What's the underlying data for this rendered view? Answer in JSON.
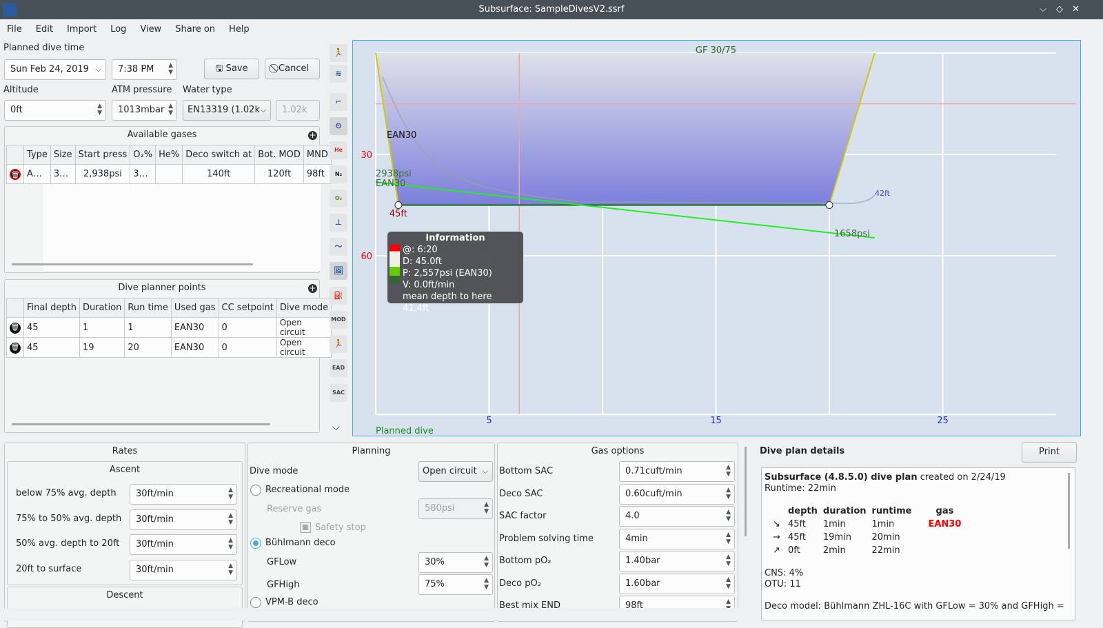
{
  "window": {
    "title": "Subsurface: SampleDivesV2.ssrf",
    "controls": [
      "minimize",
      "maximize",
      "close"
    ]
  },
  "menu": [
    "File",
    "Edit",
    "Import",
    "Log",
    "View",
    "Share on",
    "Help"
  ],
  "plan": {
    "planned_dive_time_label": "Planned dive time",
    "date": "Sun Feb 24, 2019",
    "time": "7:38 PM",
    "save": "Save",
    "cancel": "Cancel",
    "altitude_label": "Altitude",
    "altitude": "0ft",
    "atm_label": "ATM pressure",
    "atm": "1013mbar",
    "water_label": "Water type",
    "water": "EN13319 (1.02k",
    "water_density": "1.02k"
  },
  "gases": {
    "title": "Available gases",
    "headers": [
      "",
      "Type",
      "Size",
      "Start press",
      "O₂%",
      "He%",
      "Deco switch at",
      "Bot. MOD",
      "MND"
    ],
    "rows": [
      [
        "",
        "A…",
        "3…",
        "2,938psi",
        "3…",
        "",
        "140ft",
        "120ft",
        "98ft"
      ]
    ]
  },
  "points": {
    "title": "Dive planner points",
    "headers": [
      "",
      "Final depth",
      "Duration",
      "Run time",
      "Used gas",
      "CC setpoint",
      "Dive mode"
    ],
    "rows": [
      [
        "",
        "45",
        "1",
        "1",
        "EAN30",
        "0",
        "Open circuit"
      ],
      [
        "",
        "45",
        "19",
        "20",
        "EAN30",
        "0",
        "Open circuit"
      ]
    ]
  },
  "toolbar": [
    "profile-icon",
    "ceiling-icon",
    "deco-stops-icon",
    "planner-icon",
    "he-icon",
    "n2-icon",
    "o2-icon",
    "tissue-icon",
    "heartrate-icon",
    "pictures-icon",
    "gas-change-icon",
    "mod-icon",
    "ndl-icon",
    "ead-icon",
    "sac-icon"
  ],
  "toolbar_text": {
    "he": "He",
    "n2": "N₂",
    "o2": "O₂",
    "mod": "MOD",
    "ead": "EAD",
    "sac": "SAC"
  },
  "chart_data": {
    "type": "line",
    "title": "GF 30/75",
    "footer": "Planned dive",
    "x_ticks": [
      "5",
      "15",
      "25"
    ],
    "y_ticks": [
      "30",
      "60"
    ],
    "xlim": [
      0,
      30
    ],
    "ylim": [
      0,
      107
    ],
    "profile": [
      [
        0,
        0
      ],
      [
        1,
        45
      ],
      [
        20,
        45
      ],
      [
        22,
        0
      ]
    ],
    "labels": {
      "gas": "EAN30",
      "start_pressure": "2938psi",
      "start_gas": "EAN30",
      "max_depth": "45ft",
      "end_pressure": "1658psi",
      "ceiling": "42ft"
    },
    "pressure": [
      [
        1.2,
        2938
      ],
      [
        22,
        1658
      ]
    ],
    "cursor_time": 6.33,
    "red_depth": 15,
    "info": {
      "title": "Information",
      "lines": [
        "@: 6:20",
        "D: 45.0ft",
        "P: 2,557psi (EAN30)",
        "V: 0.0ft/min",
        "mean depth to here 41.4ft"
      ]
    }
  },
  "rates": {
    "title": "Rates",
    "ascent": "Ascent",
    "rows": [
      [
        "below 75% avg. depth",
        "30ft/min"
      ],
      [
        "75% to 50% avg. depth",
        "30ft/min"
      ],
      [
        "50% avg. depth to 20ft",
        "30ft/min"
      ],
      [
        "20ft to surface",
        "30ft/min"
      ]
    ],
    "descent": "Descent"
  },
  "planning": {
    "title": "Planning",
    "dive_mode_label": "Dive mode",
    "dive_mode": "Open circuit",
    "recreational": "Recreational mode",
    "reserve_label": "Reserve gas",
    "reserve": "580psi",
    "safety": "Safety stop",
    "buhlmann": "Bühlmann deco",
    "gflow_label": "GFLow",
    "gflow": "30%",
    "gfhigh_label": "GFHigh",
    "gfhigh": "75%",
    "vpm": "VPM-B deco"
  },
  "gasopt": {
    "title": "Gas options",
    "rows": [
      [
        "Bottom SAC",
        "0.71cuft/min"
      ],
      [
        "Deco SAC",
        "0.60cuft/min"
      ],
      [
        "SAC factor",
        "4.0"
      ],
      [
        "Problem solving time",
        "4min"
      ],
      [
        "Bottom pO₂",
        "1.40bar"
      ],
      [
        "Deco pO₂",
        "1.60bar"
      ],
      [
        "Best mix END",
        "98ft"
      ]
    ]
  },
  "details": {
    "title": "Dive plan details",
    "print": "Print",
    "heading_bold": "Subsurface (4.8.5.0) dive plan",
    "heading_rest": " created on 2/24/19",
    "runtime": "Runtime: 22min",
    "headers": [
      "",
      "depth",
      "duration",
      "runtime",
      "gas"
    ],
    "rows": [
      [
        "↘",
        "45ft",
        "1min",
        "1min",
        "EAN30"
      ],
      [
        "→",
        "45ft",
        "19min",
        "20min",
        ""
      ],
      [
        "↗",
        "0ft",
        "2min",
        "22min",
        ""
      ]
    ],
    "cns": "CNS: 4%",
    "otu": "OTU: 11",
    "deco_model": "Deco model: Bühlmann ZHL-16C with GFLow = 30% and GFHigh = "
  }
}
